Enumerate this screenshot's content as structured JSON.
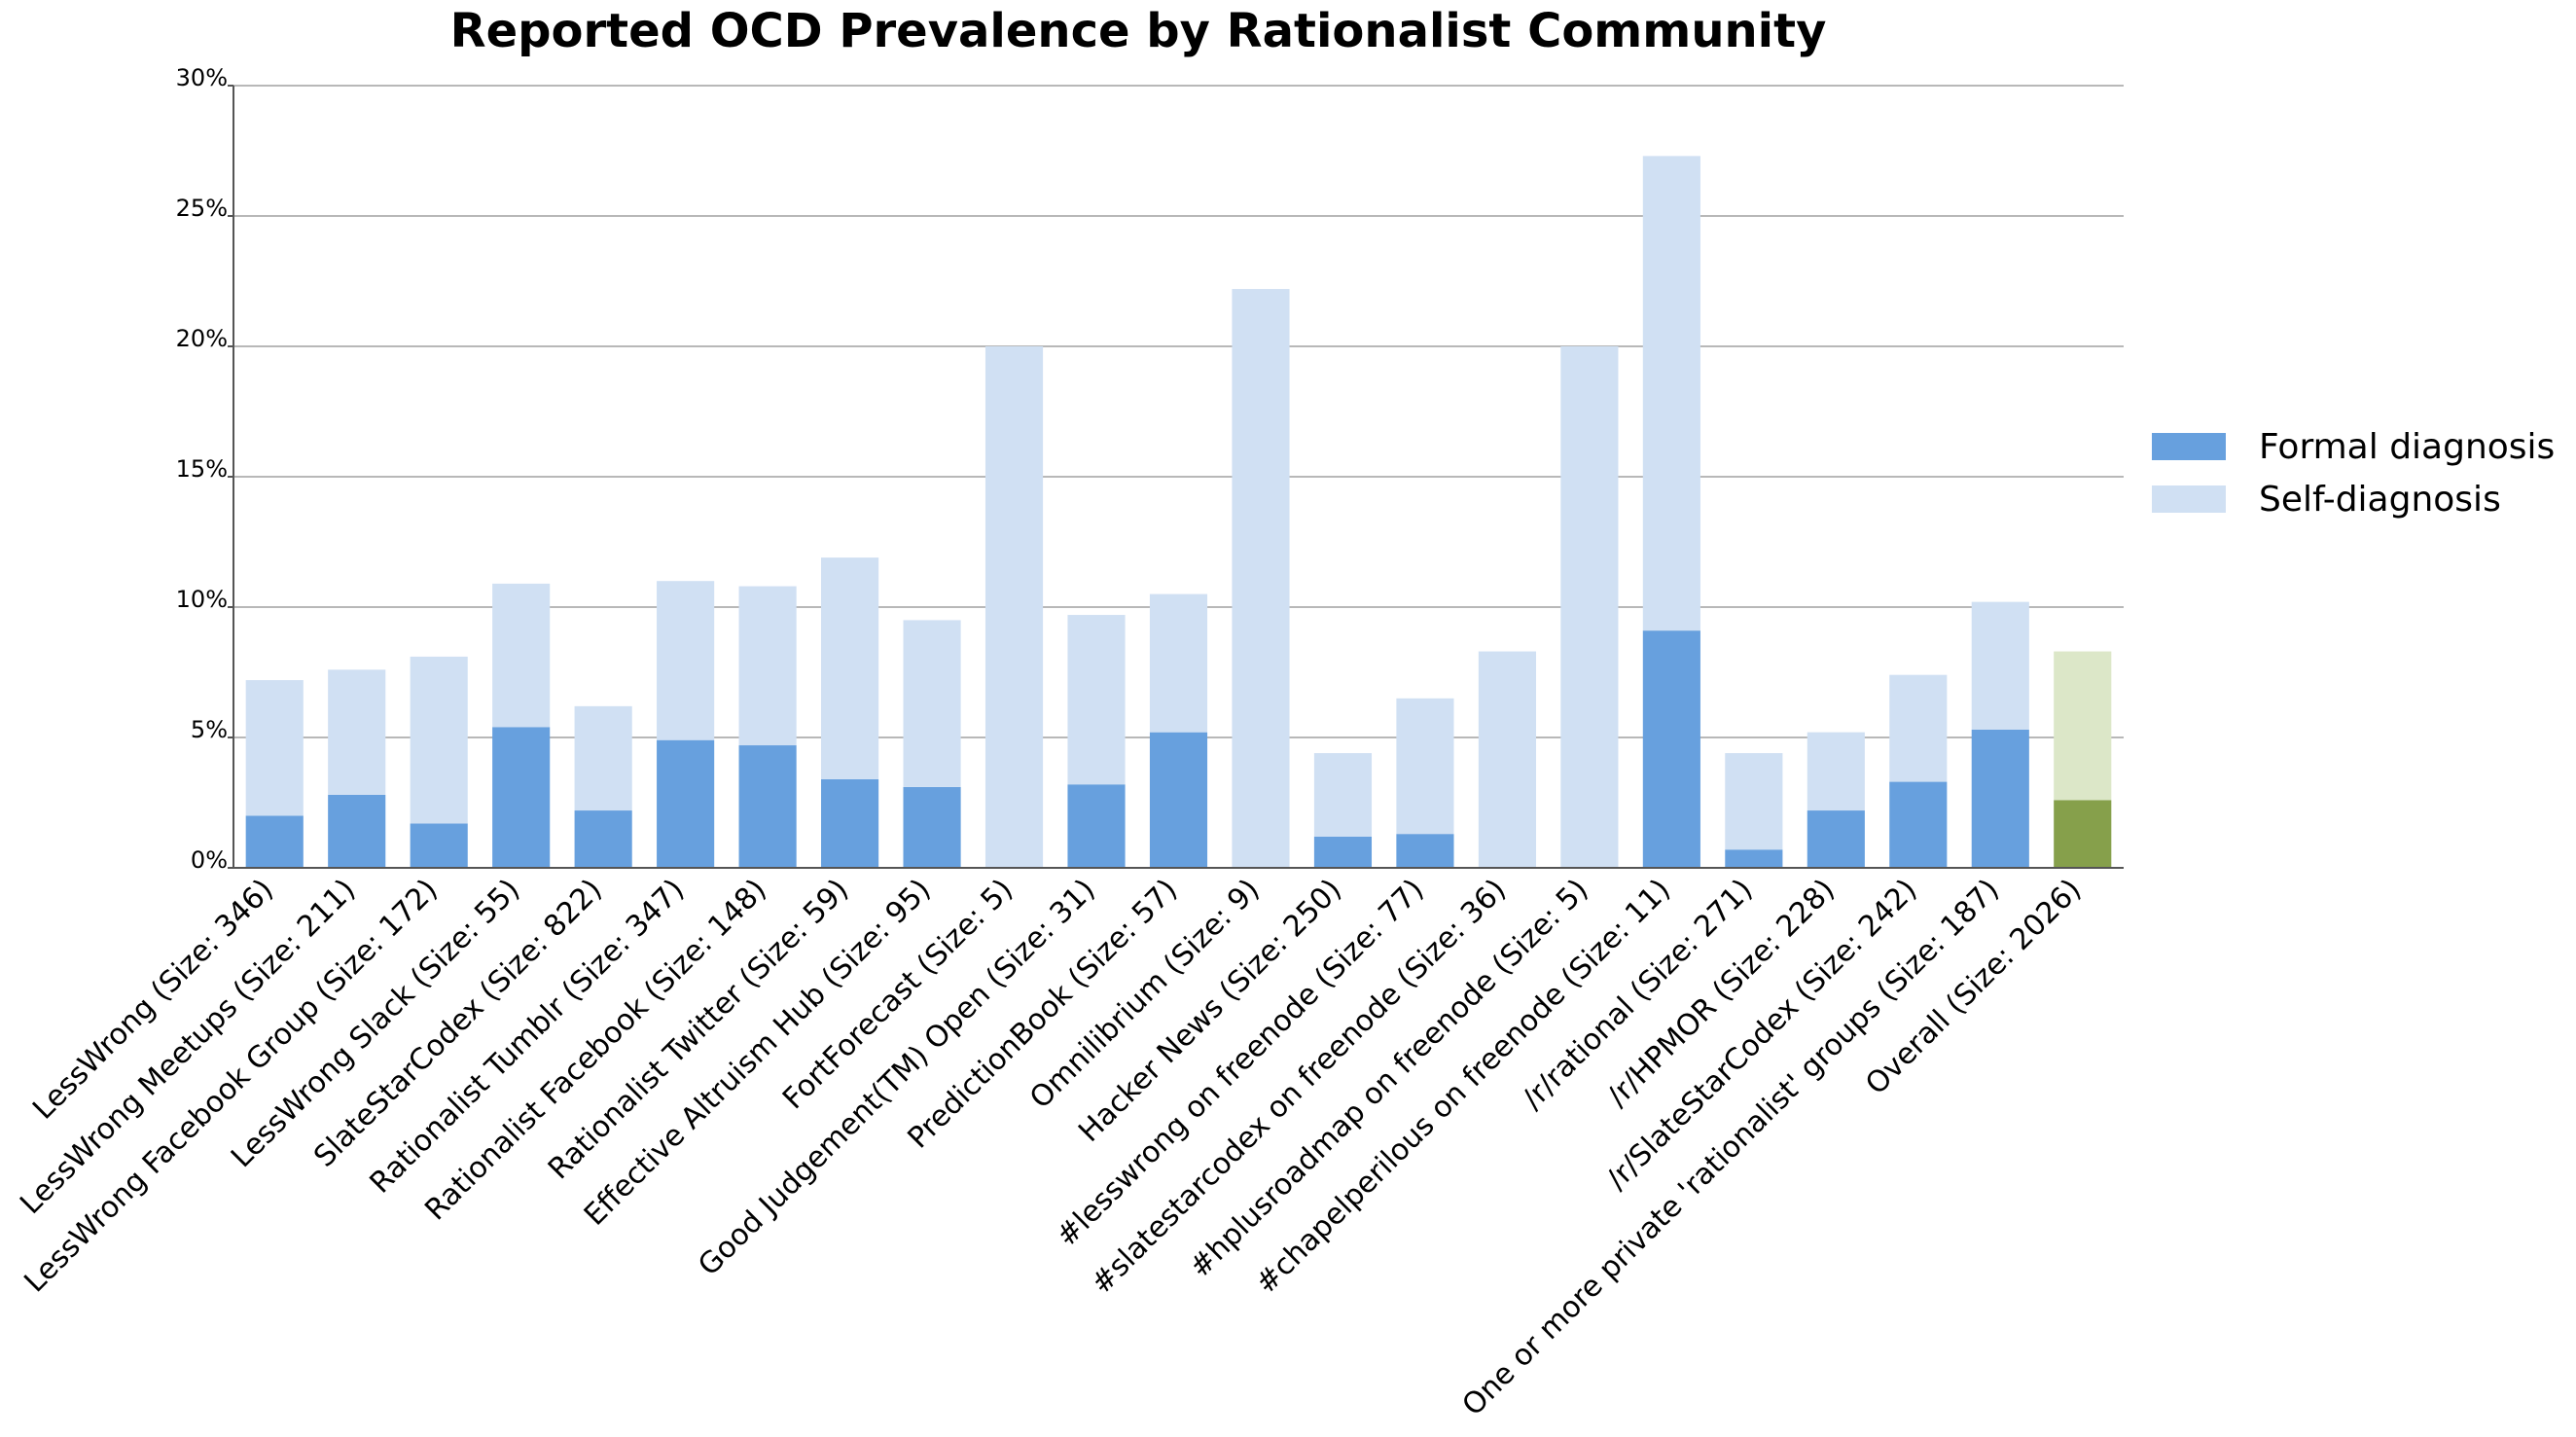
{
  "chart_data": {
    "type": "bar",
    "stacked": true,
    "title": "Reported OCD Prevalence by Rationalist Community",
    "xlabel": "",
    "ylabel": "",
    "ylim": [
      0,
      30
    ],
    "yticks": [
      0,
      5,
      10,
      15,
      20,
      25,
      30
    ],
    "ytick_labels": [
      "0%",
      "5%",
      "10%",
      "15%",
      "20%",
      "25%",
      "30%"
    ],
    "grid": "horizontal",
    "legend_position": "right",
    "categories": [
      "LessWrong (Size: 346)",
      "LessWrong Meetups (Size: 211)",
      "LessWrong Facebook Group (Size: 172)",
      "LessWrong Slack (Size: 55)",
      "SlateStarCodex (Size: 822)",
      "Rationalist Tumblr (Size: 347)",
      "Rationalist Facebook (Size: 148)",
      "Rationalist Twitter (Size: 59)",
      "Effective Altruism Hub (Size: 95)",
      "FortForecast (Size: 5)",
      "Good Judgement(TM) Open (Size: 31)",
      "PredictionBook (Size: 57)",
      "Omnilibrium (Size: 9)",
      "Hacker News (Size: 250)",
      "#lesswrong on freenode (Size: 77)",
      "#slatestarcodex on freenode (Size: 36)",
      "#hplusroadmap on freenode (Size: 5)",
      "#chapelperilous on freenode (Size: 11)",
      "/r/rational (Size: 271)",
      "/r/HPMOR (Size: 228)",
      "/r/SlateStarCodex (Size: 242)",
      "One or more private 'rationalist' groups (Size: 187)",
      "Overall (Size: 2026)"
    ],
    "series": [
      {
        "name": "Formal diagnosis",
        "color": "#67a0de",
        "highlight_color": "#86a04b",
        "values": [
          2.0,
          2.8,
          1.7,
          5.4,
          2.2,
          4.9,
          4.7,
          3.4,
          3.1,
          0.0,
          3.2,
          5.2,
          0.0,
          1.2,
          1.3,
          0.0,
          0.0,
          9.1,
          0.7,
          2.2,
          3.3,
          5.3,
          2.6
        ]
      },
      {
        "name": "Self-diagnosis",
        "color": "#d0e0f3",
        "highlight_color": "#dce7c8",
        "values": [
          5.2,
          4.8,
          6.4,
          5.5,
          4.0,
          6.1,
          6.1,
          8.5,
          6.4,
          20.0,
          6.5,
          5.3,
          22.2,
          3.2,
          5.2,
          8.3,
          20.0,
          18.2,
          3.7,
          3.0,
          4.1,
          4.9,
          5.7
        ]
      }
    ],
    "highlight_category_index": 22
  }
}
